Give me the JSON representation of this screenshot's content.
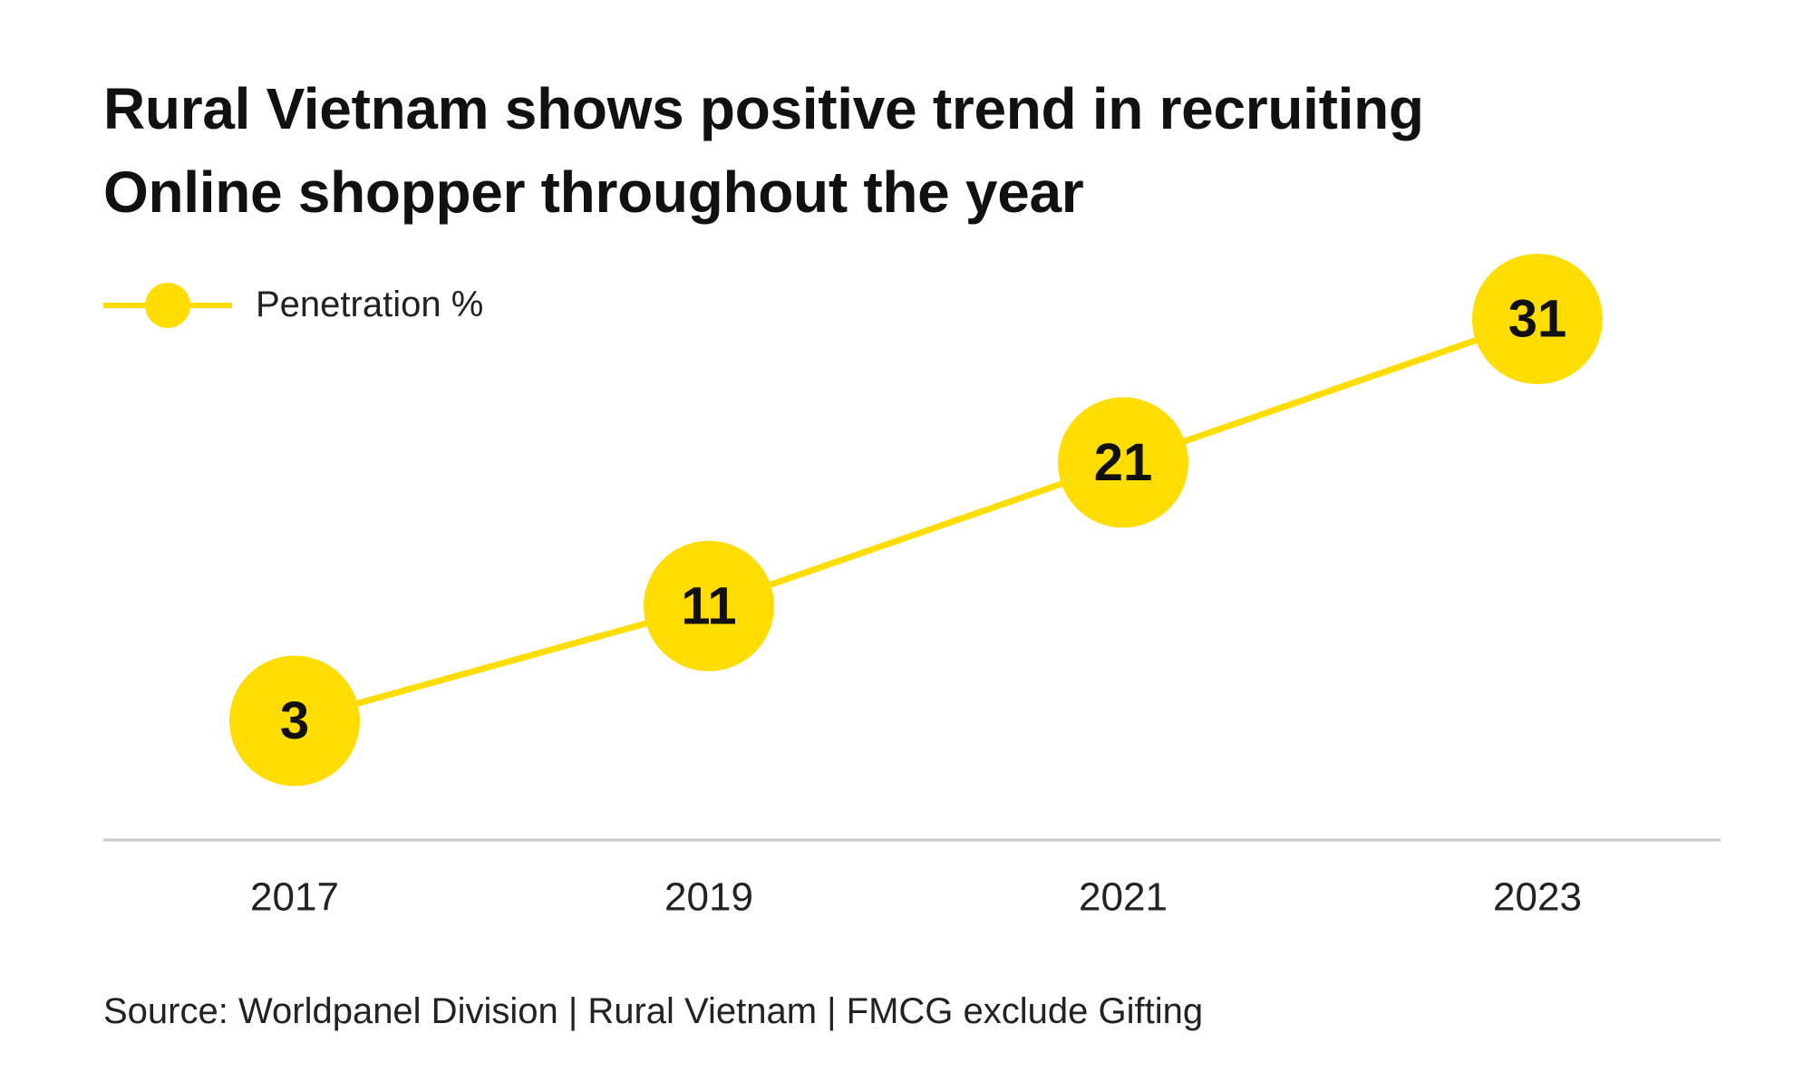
{
  "title_line1": "Rural Vietnam shows positive trend in recruiting",
  "title_line2": "Online shopper throughout the year",
  "source": "Source: Worldpanel Division | Rural Vietnam | FMCG exclude Gifting",
  "colors": {
    "accent": "#FFDD00",
    "axis": "#C8C8C8",
    "text": "#111111"
  },
  "chart_data": {
    "type": "line",
    "title": "Rural Vietnam shows positive trend in recruiting Online shopper throughout the year",
    "xlabel": "",
    "ylabel": "",
    "categories": [
      "2017",
      "2019",
      "2021",
      "2023"
    ],
    "series": [
      {
        "name": "Penetration %",
        "values": [
          3,
          11,
          21,
          31
        ]
      }
    ],
    "data_labels": true,
    "ylim": [
      0,
      31
    ],
    "grid": false,
    "legend_position": "top-left"
  }
}
